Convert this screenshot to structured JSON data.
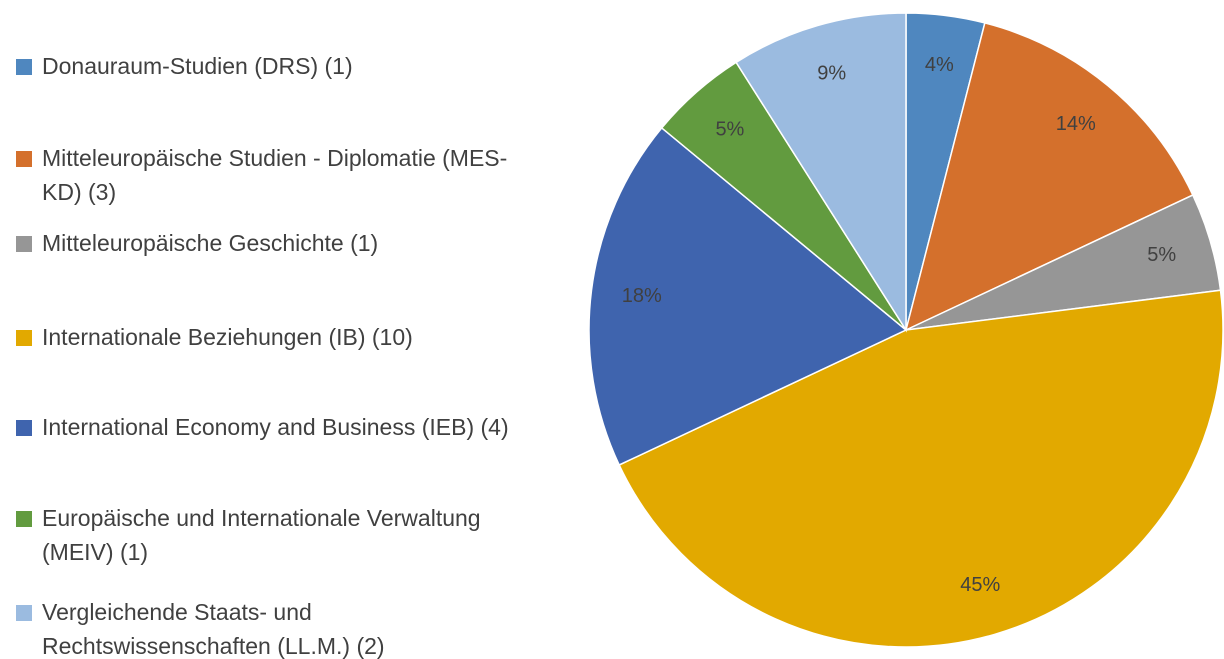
{
  "chart_data": {
    "type": "pie",
    "categories": [
      "Donauraum-Studien (DRS) (1)",
      "Mitteleuropäische Studien - Diplomatie (MES-KD) (3)",
      "Mitteleuropäische Geschichte (1)",
      "Internationale Beziehungen (IB) (10)",
      "International Economy and Business (IEB) (4)",
      "Europäische und Internationale Verwaltung (MEIV) (1)",
      "Vergleichende Staats- und Rechtswissenschaften (LL.M.) (2)"
    ],
    "values": [
      4,
      14,
      5,
      45,
      18,
      5,
      9
    ],
    "value_labels": [
      "4%",
      "14%",
      "5%",
      "45%",
      "18%",
      "5%",
      "9%"
    ],
    "colors": [
      "#4f87bf",
      "#d4702c",
      "#969696",
      "#e2a900",
      "#3f64ae",
      "#629b3f",
      "#9bbbe0"
    ]
  }
}
